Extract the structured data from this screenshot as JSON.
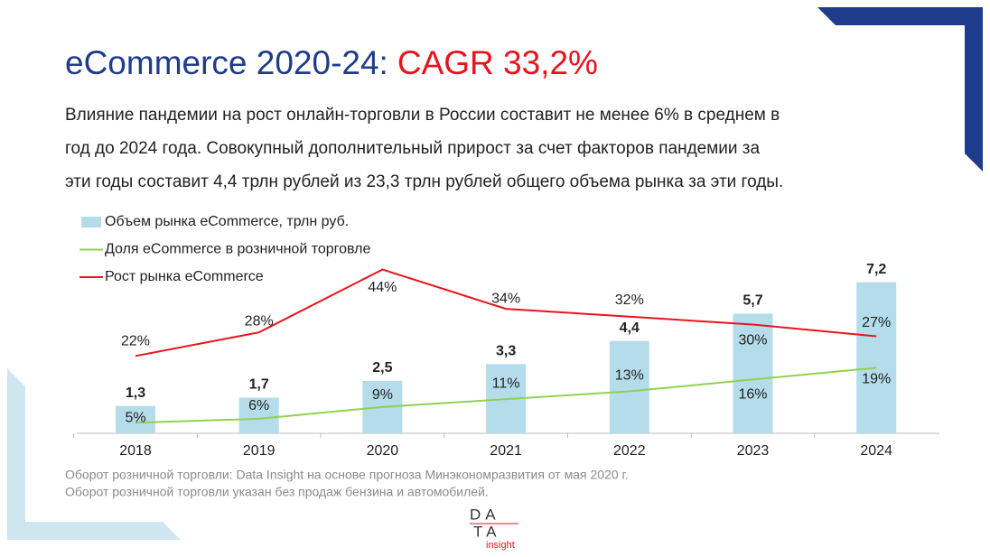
{
  "header": {
    "title": "eCommerce 2020-24:",
    "title_highlight": "CAGR 33,2%",
    "subtitle_lines": [
      "Влияние пандемии на рост онлайн-торговли в России составит не менее 6% в среднем в",
      "год до 2024 года. Совокупный дополнительный прирост за счет факторов пандемии за",
      "эти годы составит 4,4 трлн рублей из 23,3 трлн рублей общего объема рынка за эти годы."
    ]
  },
  "chart_data": {
    "type": "bar",
    "categories": [
      "2018",
      "2019",
      "2020",
      "2021",
      "2022",
      "2023",
      "2024"
    ],
    "series": [
      {
        "name": "Объем рынка eCommerce, трлн руб.",
        "type": "bar",
        "color": "#b4dcea",
        "values": [
          1.3,
          1.7,
          2.5,
          3.3,
          4.4,
          5.7,
          7.2
        ],
        "value_labels": [
          "1,3",
          "1,7",
          "2,5",
          "3,3",
          "4,4",
          "5,7",
          "7,2"
        ]
      },
      {
        "name": "Доля eCommerce в розничной торговле",
        "type": "line",
        "axis": "y2",
        "color": "#92d050",
        "values": [
          5,
          6,
          9,
          11,
          13,
          16,
          19
        ],
        "value_labels": [
          "5%",
          "6%",
          "9%",
          "11%",
          "13%",
          "16%",
          "19%"
        ]
      },
      {
        "name": "Рост рынка eCommerce",
        "type": "line",
        "axis": "y2",
        "color": "#e8141c",
        "values": [
          22,
          28,
          44,
          34,
          32,
          30,
          27
        ],
        "value_labels": [
          "22%",
          "28%",
          "44%",
          "34%",
          "32%",
          "30%",
          "27%"
        ]
      }
    ],
    "ylim": [
      0,
      8
    ],
    "y2lim": [
      0,
      50
    ]
  },
  "footnotes": [
    "Оборот розничной торговли: Data Insight на основе прогноза Минэкономразвития от мая 2020 г.",
    "Оборот розничной торговли указан без продаж бензина и автомобилей."
  ],
  "logo": {
    "line1": "DA",
    "line2": "TA",
    "line3": "insight"
  }
}
